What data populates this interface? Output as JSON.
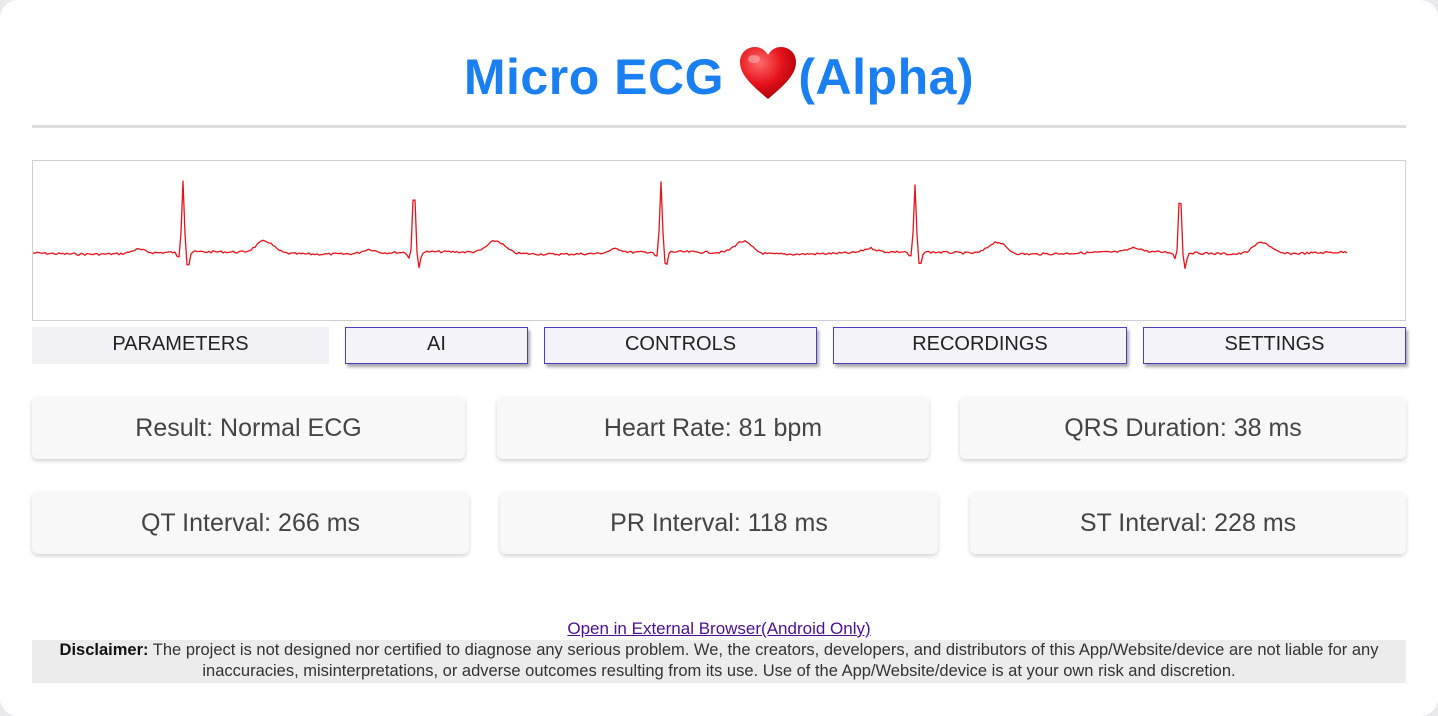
{
  "app": {
    "title": "Micro ECG",
    "title_suffix": "(Alpha)",
    "heart_icon": "heart-icon",
    "accent_color": "#1a7ff0"
  },
  "ecg": {
    "trace_color": "#e8121a",
    "beats": 5
  },
  "tabs": [
    {
      "label": "PARAMETERS",
      "active": true
    },
    {
      "label": "AI",
      "active": false
    },
    {
      "label": "CONTROLS",
      "active": false
    },
    {
      "label": "RECORDINGS",
      "active": false
    },
    {
      "label": "SETTINGS",
      "active": false
    }
  ],
  "metrics": [
    {
      "text": "Result: Normal ECG"
    },
    {
      "text": "Heart Rate: 81 bpm"
    },
    {
      "text": "QRS Duration: 38 ms"
    },
    {
      "text": "QT Interval: 266 ms"
    },
    {
      "text": "PR Interval: 118 ms"
    },
    {
      "text": "ST Interval: 228 ms"
    }
  ],
  "footer": {
    "external_link": "Open in External Browser(Android Only)",
    "disclaimer_label": "Disclaimer:",
    "disclaimer_text": "The project is not designed nor certified to diagnose any serious problem. We, the creators, developers, and distributors of this App/Website/device are not liable for any inaccuracies, misinterpretations, or adverse outcomes resulting from its use. Use of the App/Website/device is at your own risk and discretion."
  }
}
